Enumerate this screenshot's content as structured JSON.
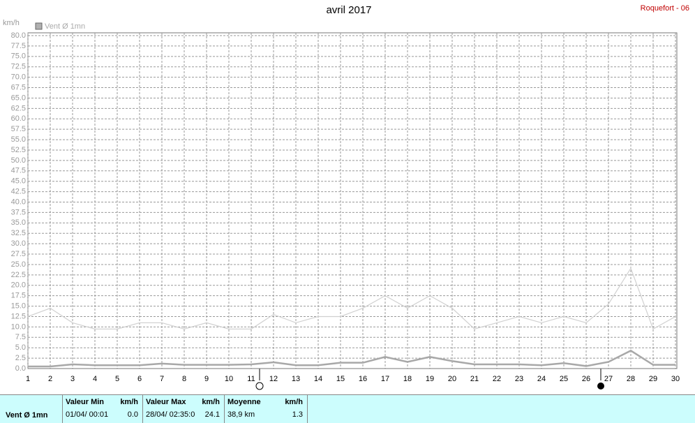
{
  "chart_data": {
    "type": "line",
    "title": "avril 2017",
    "station": "Roquefort - 06",
    "y_label": "km/h",
    "x": [
      1,
      2,
      3,
      4,
      5,
      6,
      7,
      8,
      9,
      10,
      11,
      12,
      13,
      14,
      15,
      16,
      17,
      18,
      19,
      20,
      21,
      22,
      23,
      24,
      25,
      26,
      27,
      28,
      29,
      30
    ],
    "xlim": [
      1,
      30
    ],
    "xticks": [
      1,
      2,
      3,
      4,
      5,
      6,
      7,
      8,
      9,
      10,
      11,
      12,
      13,
      14,
      15,
      16,
      17,
      18,
      19,
      20,
      21,
      22,
      23,
      24,
      25,
      26,
      27,
      28,
      29,
      30
    ],
    "ylim": [
      0,
      80
    ],
    "yticks": [
      {
        "value": 0,
        "label": "0.0"
      },
      {
        "value": 2.5,
        "label": "2.5"
      },
      {
        "value": 5,
        "label": "5.0"
      },
      {
        "value": 7.5,
        "label": "7.5"
      },
      {
        "value": 10,
        "label": "10.0"
      },
      {
        "value": 12.5,
        "label": "12.5"
      },
      {
        "value": 15,
        "label": "15.0"
      },
      {
        "value": 17.5,
        "label": "17.5"
      },
      {
        "value": 20,
        "label": "20.0"
      },
      {
        "value": 22.5,
        "label": "22.5"
      },
      {
        "value": 25,
        "label": "25.0"
      },
      {
        "value": 27.5,
        "label": "27.5"
      },
      {
        "value": 30,
        "label": "30.0"
      },
      {
        "value": 32.5,
        "label": "32.5"
      },
      {
        "value": 35,
        "label": "35.0"
      },
      {
        "value": 37.5,
        "label": "37.5"
      },
      {
        "value": 40,
        "label": "40.0"
      },
      {
        "value": 42.5,
        "label": "42.5"
      },
      {
        "value": 45,
        "label": "45.0"
      },
      {
        "value": 47.5,
        "label": "47.5"
      },
      {
        "value": 50,
        "label": "50.0"
      },
      {
        "value": 52.5,
        "label": "52.5"
      },
      {
        "value": 55,
        "label": "55.0"
      },
      {
        "value": 57.5,
        "label": "57.5"
      },
      {
        "value": 60,
        "label": "60.0"
      },
      {
        "value": 62.5,
        "label": "62.5"
      },
      {
        "value": 65,
        "label": "65.0"
      },
      {
        "value": 67.5,
        "label": "67.5"
      },
      {
        "value": 70,
        "label": "70.0"
      },
      {
        "value": 72.5,
        "label": "72.5"
      },
      {
        "value": 75,
        "label": "75.0"
      },
      {
        "value": 77.5,
        "label": "77.5"
      },
      {
        "value": 80,
        "label": "80.0"
      }
    ],
    "grid": true,
    "series": [
      {
        "name": "Vent Ø 1mn",
        "color": "#a8a8a8",
        "values": [
          0.5,
          0.5,
          1,
          0.8,
          0.8,
          0.8,
          1.2,
          0.9,
          0.9,
          0.9,
          1,
          1.5,
          0.8,
          0.8,
          1.4,
          1.4,
          2.8,
          1.6,
          2.8,
          1.8,
          1,
          1,
          1,
          0.8,
          1.3,
          0.6,
          1.6,
          4.3,
          0.9,
          0.9
        ]
      },
      {
        "color": "#d0d0d0",
        "values": [
          12.5,
          14.5,
          11,
          9.5,
          9.5,
          11,
          11,
          9.5,
          11,
          9.5,
          9.5,
          13,
          11,
          12.5,
          12.5,
          14.5,
          17.5,
          14.5,
          17.5,
          14.5,
          9.5,
          11,
          12.5,
          11,
          12.5,
          11,
          15.5,
          24.1,
          9.5,
          12.5
        ]
      }
    ]
  },
  "table": {
    "label": "Vent Ø 1mn",
    "columns": [
      {
        "header": "Valeur Min",
        "unit": "km/h",
        "when": "01/04/  00:01",
        "value": "0.0"
      },
      {
        "header": "Valeur Max",
        "unit": "km/h",
        "when": "28/04/  02:35:0",
        "value": "24.1"
      },
      {
        "header": "Moyenne",
        "unit": "km/h",
        "when": "38,9 km",
        "value": "1.3"
      }
    ]
  }
}
